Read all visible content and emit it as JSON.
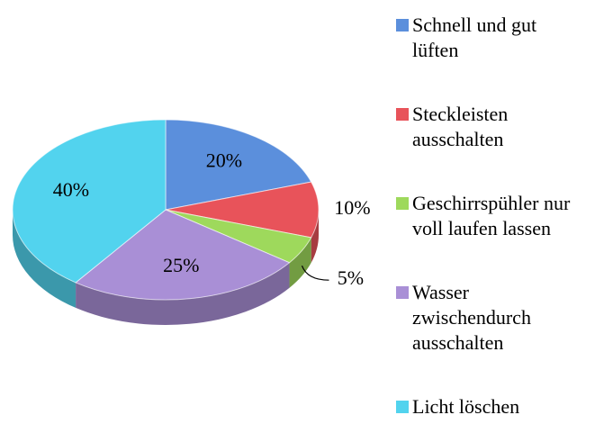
{
  "chart_data": {
    "type": "pie",
    "categories": [
      "Schnell und gut lüften",
      "Steckleisten ausschalten",
      "Geschirrspühler nur voll laufen lassen",
      "Wasser zwischendurch ausschalten",
      "Licht löschen"
    ],
    "values": [
      20,
      10,
      5,
      25,
      40
    ],
    "value_labels": [
      "20%",
      "10%",
      "5%",
      "25%",
      "40%"
    ],
    "colors": [
      "#5b8fdc",
      "#e8535a",
      "#9ed95c",
      "#a98fd6",
      "#52d3ee"
    ],
    "legend": "right"
  }
}
